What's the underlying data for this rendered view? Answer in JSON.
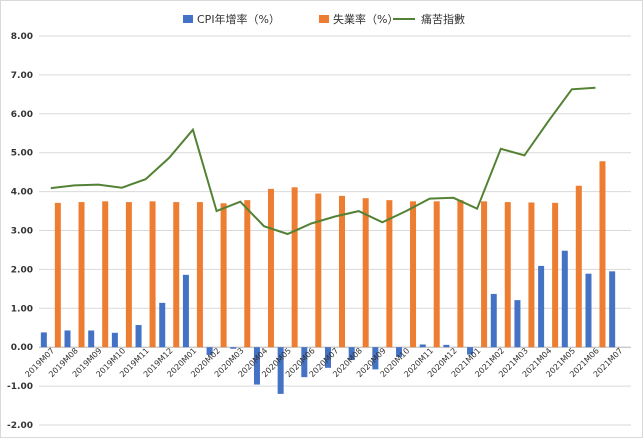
{
  "chart_data": {
    "type": "bar",
    "title": "",
    "xlabel": "",
    "ylabel": "",
    "ylim": [
      -2,
      8
    ],
    "ytick_step": 1,
    "grid": true,
    "legend_position": "top",
    "categories": [
      "2019M07",
      "2019M08",
      "2019M09",
      "2019M10",
      "2019M11",
      "2019M12",
      "2020M01",
      "2020M02",
      "2020M03",
      "2020M04",
      "2020M05",
      "2020M06",
      "2020M07",
      "2020M08",
      "2020M09",
      "2020M10",
      "2020M11",
      "2020M12",
      "2021M01",
      "2021M02",
      "2021M03",
      "2021M04",
      "2021M05",
      "2021M06",
      "2021M07"
    ],
    "series": [
      {
        "name": "CPI年增率（%）",
        "kind": "bar",
        "color": "#4472c4",
        "values": [
          0.38,
          0.43,
          0.43,
          0.37,
          0.57,
          1.14,
          1.86,
          -0.2,
          -0.04,
          -0.96,
          -1.2,
          -0.77,
          -0.53,
          -0.33,
          -0.57,
          -0.25,
          0.07,
          0.06,
          -0.19,
          1.37,
          1.21,
          2.09,
          2.48,
          1.89,
          1.95
        ]
      },
      {
        "name": "失業率（%）",
        "kind": "bar",
        "color": "#ed7d31",
        "values": [
          3.71,
          3.73,
          3.75,
          3.73,
          3.75,
          3.73,
          3.73,
          3.7,
          3.78,
          4.07,
          4.11,
          3.95,
          3.89,
          3.83,
          3.78,
          3.75,
          3.75,
          3.78,
          3.75,
          3.73,
          3.72,
          3.71,
          4.15,
          4.78,
          null
        ]
      },
      {
        "name": "痛苦指數",
        "kind": "line",
        "color": "#548235",
        "values": [
          4.09,
          4.16,
          4.18,
          4.1,
          4.32,
          4.87,
          5.59,
          3.5,
          3.74,
          3.11,
          2.91,
          3.18,
          3.36,
          3.5,
          3.21,
          3.5,
          3.82,
          3.84,
          3.56,
          5.1,
          4.93,
          5.8,
          6.63,
          6.67,
          null
        ]
      }
    ]
  }
}
